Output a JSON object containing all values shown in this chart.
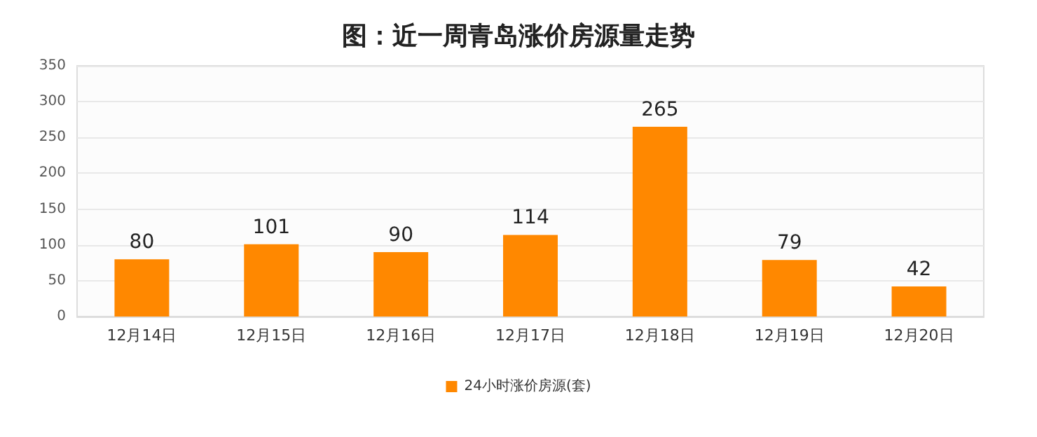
{
  "chart_data": {
    "type": "bar",
    "title": "图：近一周青岛涨价房源量走势",
    "categories": [
      "12月14日",
      "12月15日",
      "12月16日",
      "12月17日",
      "12月18日",
      "12月19日",
      "12月20日"
    ],
    "series": [
      {
        "name": "24小时涨价房源(套)",
        "color": "#ff8800",
        "values": [
          80,
          101,
          90,
          114,
          265,
          79,
          42
        ]
      }
    ],
    "ylim": [
      0,
      350
    ],
    "yticks": [
      0,
      50,
      100,
      150,
      200,
      250,
      300,
      350
    ],
    "grid": "y",
    "legend": "bottom",
    "data_labels": true
  }
}
